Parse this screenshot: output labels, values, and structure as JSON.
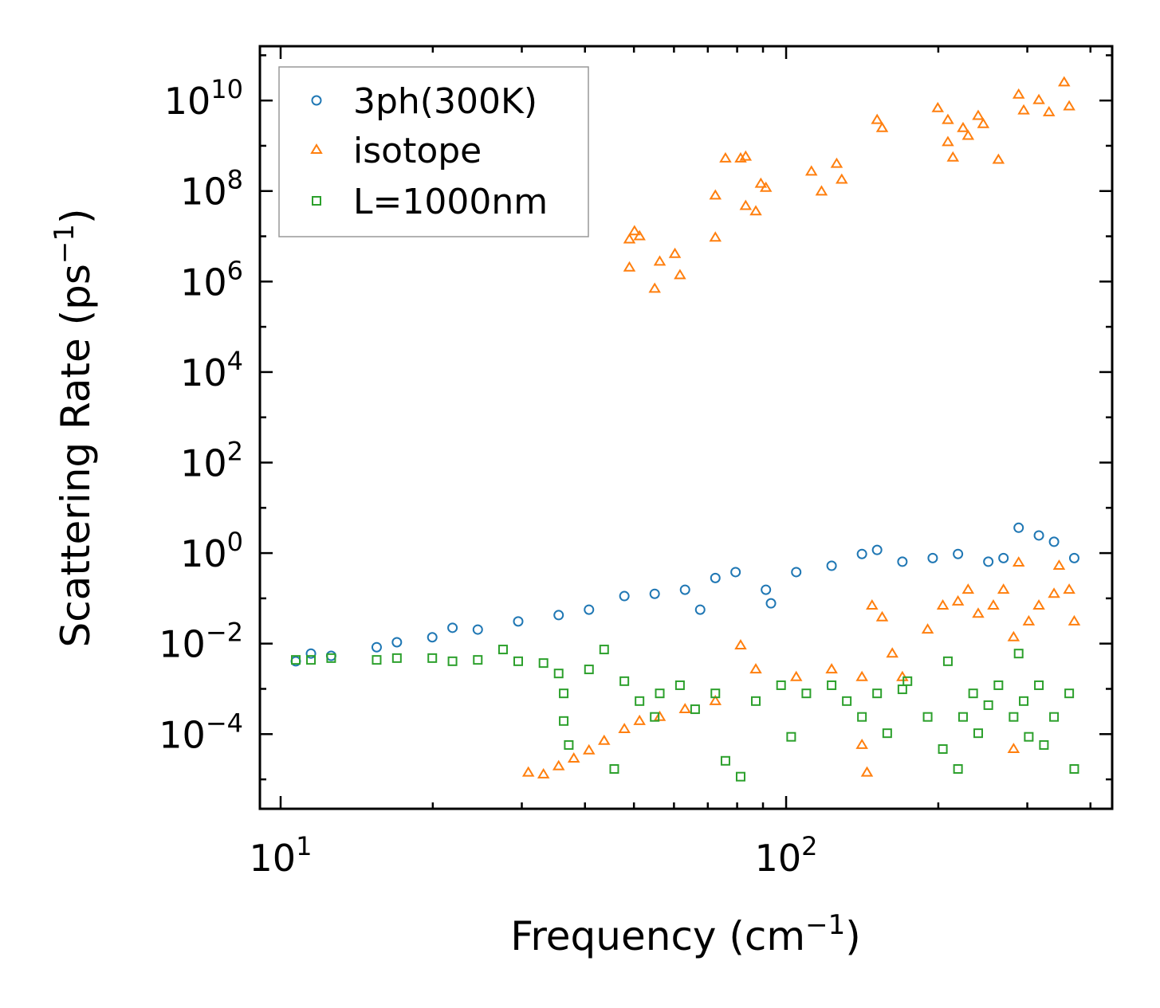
{
  "chart_data": {
    "type": "scatter",
    "title": "",
    "xlabel": "Frequency (cm",
    "xlabel_exp": "−1",
    "xlabel_close": ")",
    "ylabel": "Scattering Rate (ps",
    "ylabel_exp": "−1",
    "ylabel_close": ")",
    "xscale": "log",
    "yscale": "log",
    "xlim_log10": [
      0.959,
      2.645
    ],
    "ylim_log10": [
      -5.65,
      11.2
    ],
    "x_ticks": [
      {
        "base": "10",
        "exp": "1",
        "log10": 1
      },
      {
        "base": "10",
        "exp": "2",
        "log10": 2
      }
    ],
    "y_ticks": [
      {
        "base": "10",
        "exp": "−4",
        "log10": -4
      },
      {
        "base": "10",
        "exp": "−2",
        "log10": -2
      },
      {
        "base": "10",
        "exp": "0",
        "log10": 0
      },
      {
        "base": "10",
        "exp": "2",
        "log10": 2
      },
      {
        "base": "10",
        "exp": "4",
        "log10": 4
      },
      {
        "base": "10",
        "exp": "6",
        "log10": 6
      },
      {
        "base": "10",
        "exp": "8",
        "log10": 8
      },
      {
        "base": "10",
        "exp": "10",
        "log10": 10
      }
    ],
    "grid": false,
    "legend_position": "top-left",
    "point_format": "[log10(frequency), log10(rate)]",
    "series": [
      {
        "name": "3ph(300K)",
        "color": "#1f77b4",
        "marker": "circle",
        "points": [
          [
            1.03,
            -2.39
          ],
          [
            1.06,
            -2.22
          ],
          [
            1.1,
            -2.27
          ],
          [
            1.19,
            -2.08
          ],
          [
            1.23,
            -1.97
          ],
          [
            1.3,
            -1.86
          ],
          [
            1.34,
            -1.65
          ],
          [
            1.39,
            -1.69
          ],
          [
            1.47,
            -1.51
          ],
          [
            1.55,
            -1.37
          ],
          [
            1.61,
            -1.25
          ],
          [
            1.68,
            -0.95
          ],
          [
            1.74,
            -0.9
          ],
          [
            1.8,
            -0.81
          ],
          [
            1.83,
            -1.25
          ],
          [
            1.86,
            -0.55
          ],
          [
            1.9,
            -0.42
          ],
          [
            1.96,
            -0.81
          ],
          [
            1.97,
            -1.11
          ],
          [
            2.02,
            -0.42
          ],
          [
            2.09,
            -0.28
          ],
          [
            2.15,
            -0.02
          ],
          [
            2.18,
            0.07
          ],
          [
            2.23,
            -0.19
          ],
          [
            2.29,
            -0.11
          ],
          [
            2.34,
            -0.02
          ],
          [
            2.4,
            -0.19
          ],
          [
            2.43,
            -0.11
          ],
          [
            2.46,
            0.56
          ],
          [
            2.5,
            0.39
          ],
          [
            2.53,
            0.25
          ],
          [
            2.57,
            -0.11
          ]
        ]
      },
      {
        "name": "isotope",
        "color": "#ff7f0e",
        "marker": "triangle",
        "points": [
          [
            1.69,
            6.93
          ],
          [
            1.7,
            7.11
          ],
          [
            1.71,
            7.0
          ],
          [
            1.69,
            6.31
          ],
          [
            1.75,
            6.44
          ],
          [
            1.74,
            5.84
          ],
          [
            1.78,
            6.61
          ],
          [
            1.79,
            6.14
          ],
          [
            1.86,
            6.97
          ],
          [
            1.86,
            7.9
          ],
          [
            1.88,
            8.72
          ],
          [
            1.91,
            8.72
          ],
          [
            1.92,
            8.76
          ],
          [
            1.92,
            7.67
          ],
          [
            1.94,
            7.55
          ],
          [
            1.95,
            8.16
          ],
          [
            1.96,
            8.07
          ],
          [
            2.05,
            8.43
          ],
          [
            2.07,
            7.99
          ],
          [
            2.1,
            8.6
          ],
          [
            2.11,
            8.25
          ],
          [
            2.18,
            9.57
          ],
          [
            2.19,
            9.39
          ],
          [
            2.3,
            9.83
          ],
          [
            2.32,
            9.57
          ],
          [
            2.32,
            9.08
          ],
          [
            2.33,
            8.74
          ],
          [
            2.35,
            9.39
          ],
          [
            2.36,
            9.22
          ],
          [
            2.38,
            9.66
          ],
          [
            2.39,
            9.48
          ],
          [
            2.42,
            8.69
          ],
          [
            2.46,
            10.13
          ],
          [
            2.47,
            9.78
          ],
          [
            2.5,
            10.01
          ],
          [
            2.52,
            9.74
          ],
          [
            2.55,
            10.4
          ],
          [
            2.56,
            9.87
          ],
          [
            1.49,
            -4.85
          ],
          [
            1.52,
            -4.89
          ],
          [
            1.55,
            -4.71
          ],
          [
            1.58,
            -4.54
          ],
          [
            1.61,
            -4.36
          ],
          [
            1.64,
            -4.15
          ],
          [
            1.68,
            -3.89
          ],
          [
            1.71,
            -3.71
          ],
          [
            1.75,
            -3.62
          ],
          [
            1.8,
            -3.45
          ],
          [
            1.86,
            -3.27
          ],
          [
            1.91,
            -2.04
          ],
          [
            1.94,
            -2.57
          ],
          [
            2.02,
            -2.74
          ],
          [
            2.09,
            -2.57
          ],
          [
            2.15,
            -2.74
          ],
          [
            2.17,
            -1.16
          ],
          [
            2.19,
            -1.42
          ],
          [
            2.21,
            -2.22
          ],
          [
            2.23,
            -2.74
          ],
          [
            2.16,
            -4.85
          ],
          [
            2.15,
            -4.24
          ],
          [
            2.28,
            -1.69
          ],
          [
            2.31,
            -1.16
          ],
          [
            2.34,
            -1.07
          ],
          [
            2.36,
            -0.81
          ],
          [
            2.38,
            -1.34
          ],
          [
            2.41,
            -1.16
          ],
          [
            2.43,
            -0.81
          ],
          [
            2.45,
            -1.86
          ],
          [
            2.46,
            -0.21
          ],
          [
            2.48,
            -1.51
          ],
          [
            2.5,
            -1.16
          ],
          [
            2.53,
            -0.9
          ],
          [
            2.56,
            -0.81
          ],
          [
            2.57,
            -1.51
          ],
          [
            2.45,
            -4.33
          ],
          [
            2.54,
            -0.28
          ]
        ]
      },
      {
        "name": "L=1000nm",
        "color": "#2ca02c",
        "marker": "square",
        "points": [
          [
            1.03,
            -2.36
          ],
          [
            1.06,
            -2.36
          ],
          [
            1.1,
            -2.32
          ],
          [
            1.19,
            -2.36
          ],
          [
            1.23,
            -2.32
          ],
          [
            1.3,
            -2.32
          ],
          [
            1.34,
            -2.39
          ],
          [
            1.39,
            -2.36
          ],
          [
            1.44,
            -2.13
          ],
          [
            1.47,
            -2.39
          ],
          [
            1.52,
            -2.43
          ],
          [
            1.55,
            -2.66
          ],
          [
            1.56,
            -3.1
          ],
          [
            1.56,
            -3.71
          ],
          [
            1.57,
            -4.24
          ],
          [
            1.61,
            -2.57
          ],
          [
            1.64,
            -2.13
          ],
          [
            1.66,
            -4.77
          ],
          [
            1.68,
            -2.83
          ],
          [
            1.71,
            -3.27
          ],
          [
            1.74,
            -3.62
          ],
          [
            1.75,
            -3.1
          ],
          [
            1.79,
            -2.92
          ],
          [
            1.82,
            -3.45
          ],
          [
            1.86,
            -3.1
          ],
          [
            1.88,
            -4.59
          ],
          [
            1.91,
            -4.94
          ],
          [
            1.94,
            -3.27
          ],
          [
            1.99,
            -2.92
          ],
          [
            2.01,
            -4.06
          ],
          [
            2.04,
            -3.1
          ],
          [
            2.09,
            -2.92
          ],
          [
            2.12,
            -3.27
          ],
          [
            2.15,
            -3.62
          ],
          [
            2.18,
            -3.1
          ],
          [
            2.2,
            -3.98
          ],
          [
            2.23,
            -3.01
          ],
          [
            2.24,
            -2.83
          ],
          [
            2.28,
            -3.62
          ],
          [
            2.31,
            -4.33
          ],
          [
            2.32,
            -2.39
          ],
          [
            2.34,
            -4.77
          ],
          [
            2.35,
            -3.62
          ],
          [
            2.37,
            -3.1
          ],
          [
            2.38,
            -3.98
          ],
          [
            2.4,
            -3.36
          ],
          [
            2.42,
            -2.92
          ],
          [
            2.45,
            -3.62
          ],
          [
            2.47,
            -3.27
          ],
          [
            2.48,
            -4.06
          ],
          [
            2.5,
            -2.92
          ],
          [
            2.51,
            -4.24
          ],
          [
            2.53,
            -3.62
          ],
          [
            2.56,
            -3.1
          ],
          [
            2.57,
            -4.77
          ],
          [
            2.46,
            -2.22
          ]
        ]
      }
    ]
  }
}
